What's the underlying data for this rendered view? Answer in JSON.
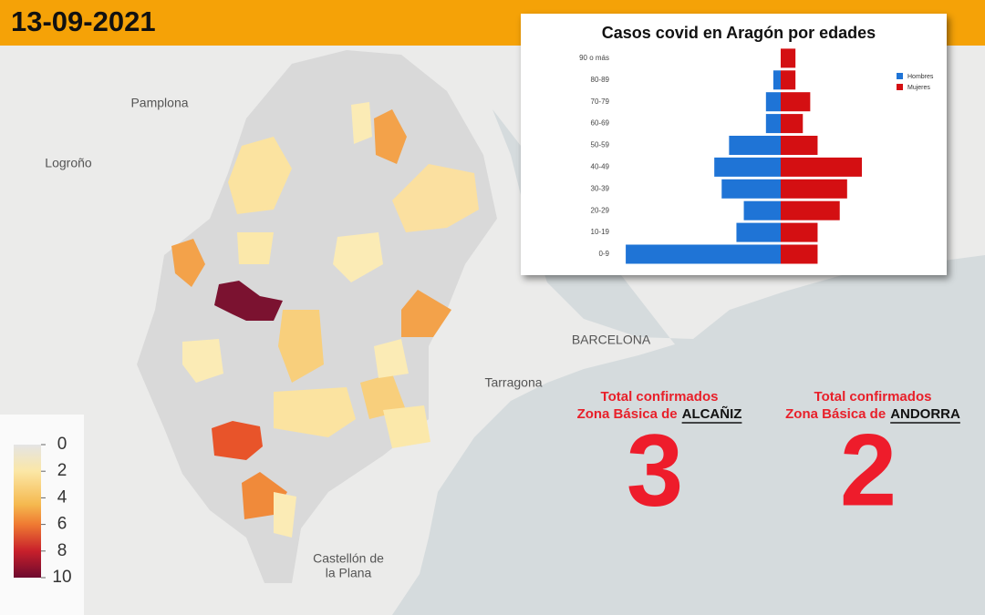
{
  "header": {
    "date": "13-09-2021"
  },
  "map": {
    "places": [
      {
        "lines": [
          "Pamplona"
        ]
      },
      {
        "lines": [
          "Logroño"
        ]
      },
      {
        "lines": [
          "BARCELONA"
        ]
      },
      {
        "lines": [
          "Tarragona"
        ]
      },
      {
        "lines": [
          "Castellón de",
          "la Plana"
        ]
      }
    ]
  },
  "legend": {
    "ticks": [
      0,
      2,
      4,
      6,
      8,
      10
    ]
  },
  "chart_data": {
    "type": "pyramid",
    "title": "Casos covid en Aragón por edades",
    "categories": [
      "0-9",
      "10-19",
      "20-29",
      "30-39",
      "40-49",
      "50-59",
      "60-69",
      "70-79",
      "80-89",
      "90 o más"
    ],
    "series": [
      {
        "name": "Hombres",
        "color": "#1f74d6",
        "values": [
          21,
          6,
          5,
          8,
          9,
          7,
          2,
          2,
          1,
          0
        ]
      },
      {
        "name": "Mujeres",
        "color": "#d40f12",
        "values": [
          5,
          5,
          8,
          9,
          11,
          5,
          3,
          4,
          2,
          2
        ]
      }
    ],
    "xlim": [
      0,
      22
    ]
  },
  "stats": [
    {
      "title": "Total confirmados",
      "zone_prefix": "Zona Básica de",
      "zone": "ALCAÑIZ",
      "value": 3
    },
    {
      "title": "Total confirmados",
      "zone_prefix": "Zona Básica de",
      "zone": "ANDORRA",
      "value": 2
    }
  ]
}
